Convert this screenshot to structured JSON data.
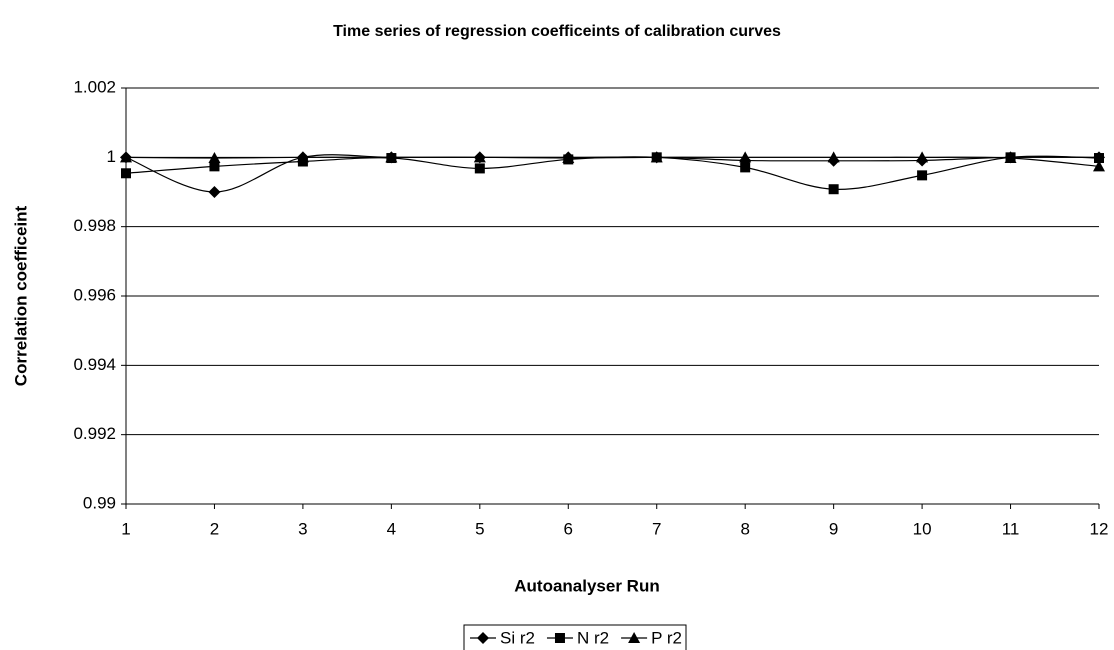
{
  "chart_data": {
    "type": "line",
    "title": "Time series of regression coefficeints of calibration curves",
    "x_label": "Autoanalyser Run",
    "y_label": "Correlation coefficeint",
    "x": [
      1,
      2,
      3,
      4,
      5,
      6,
      7,
      8,
      9,
      10,
      11,
      12
    ],
    "xlim": [
      1,
      12
    ],
    "xticks": [
      1,
      2,
      3,
      4,
      5,
      6,
      7,
      8,
      9,
      10,
      11,
      12
    ],
    "ylim": [
      0.99,
      1.002
    ],
    "yticks": [
      0.99,
      0.992,
      0.994,
      0.996,
      0.998,
      1,
      1.002
    ],
    "grid": true,
    "smooth": true,
    "legend": "bottom",
    "series": [
      {
        "name": "Si r2",
        "color": "#000000",
        "marker": "diamond",
        "values": [
          1.0,
          0.999,
          1.0,
          1.0,
          1.0,
          1.0,
          1.0,
          0.99991,
          0.9999,
          0.99991,
          1.0,
          1.0
        ]
      },
      {
        "name": "N r2",
        "color": "#000000",
        "marker": "square",
        "values": [
          0.99954,
          0.99974,
          0.99988,
          0.99998,
          0.99968,
          0.99994,
          1.0,
          0.99971,
          0.99908,
          0.99948,
          1.0,
          0.99998
        ]
      },
      {
        "name": "P r2",
        "color": "#000000",
        "marker": "triangle",
        "values": [
          1.0,
          0.99998,
          1.0,
          1.0,
          1.0,
          0.99998,
          1.0,
          1.0,
          1.0,
          1.0,
          0.99998,
          0.99974
        ]
      }
    ]
  }
}
